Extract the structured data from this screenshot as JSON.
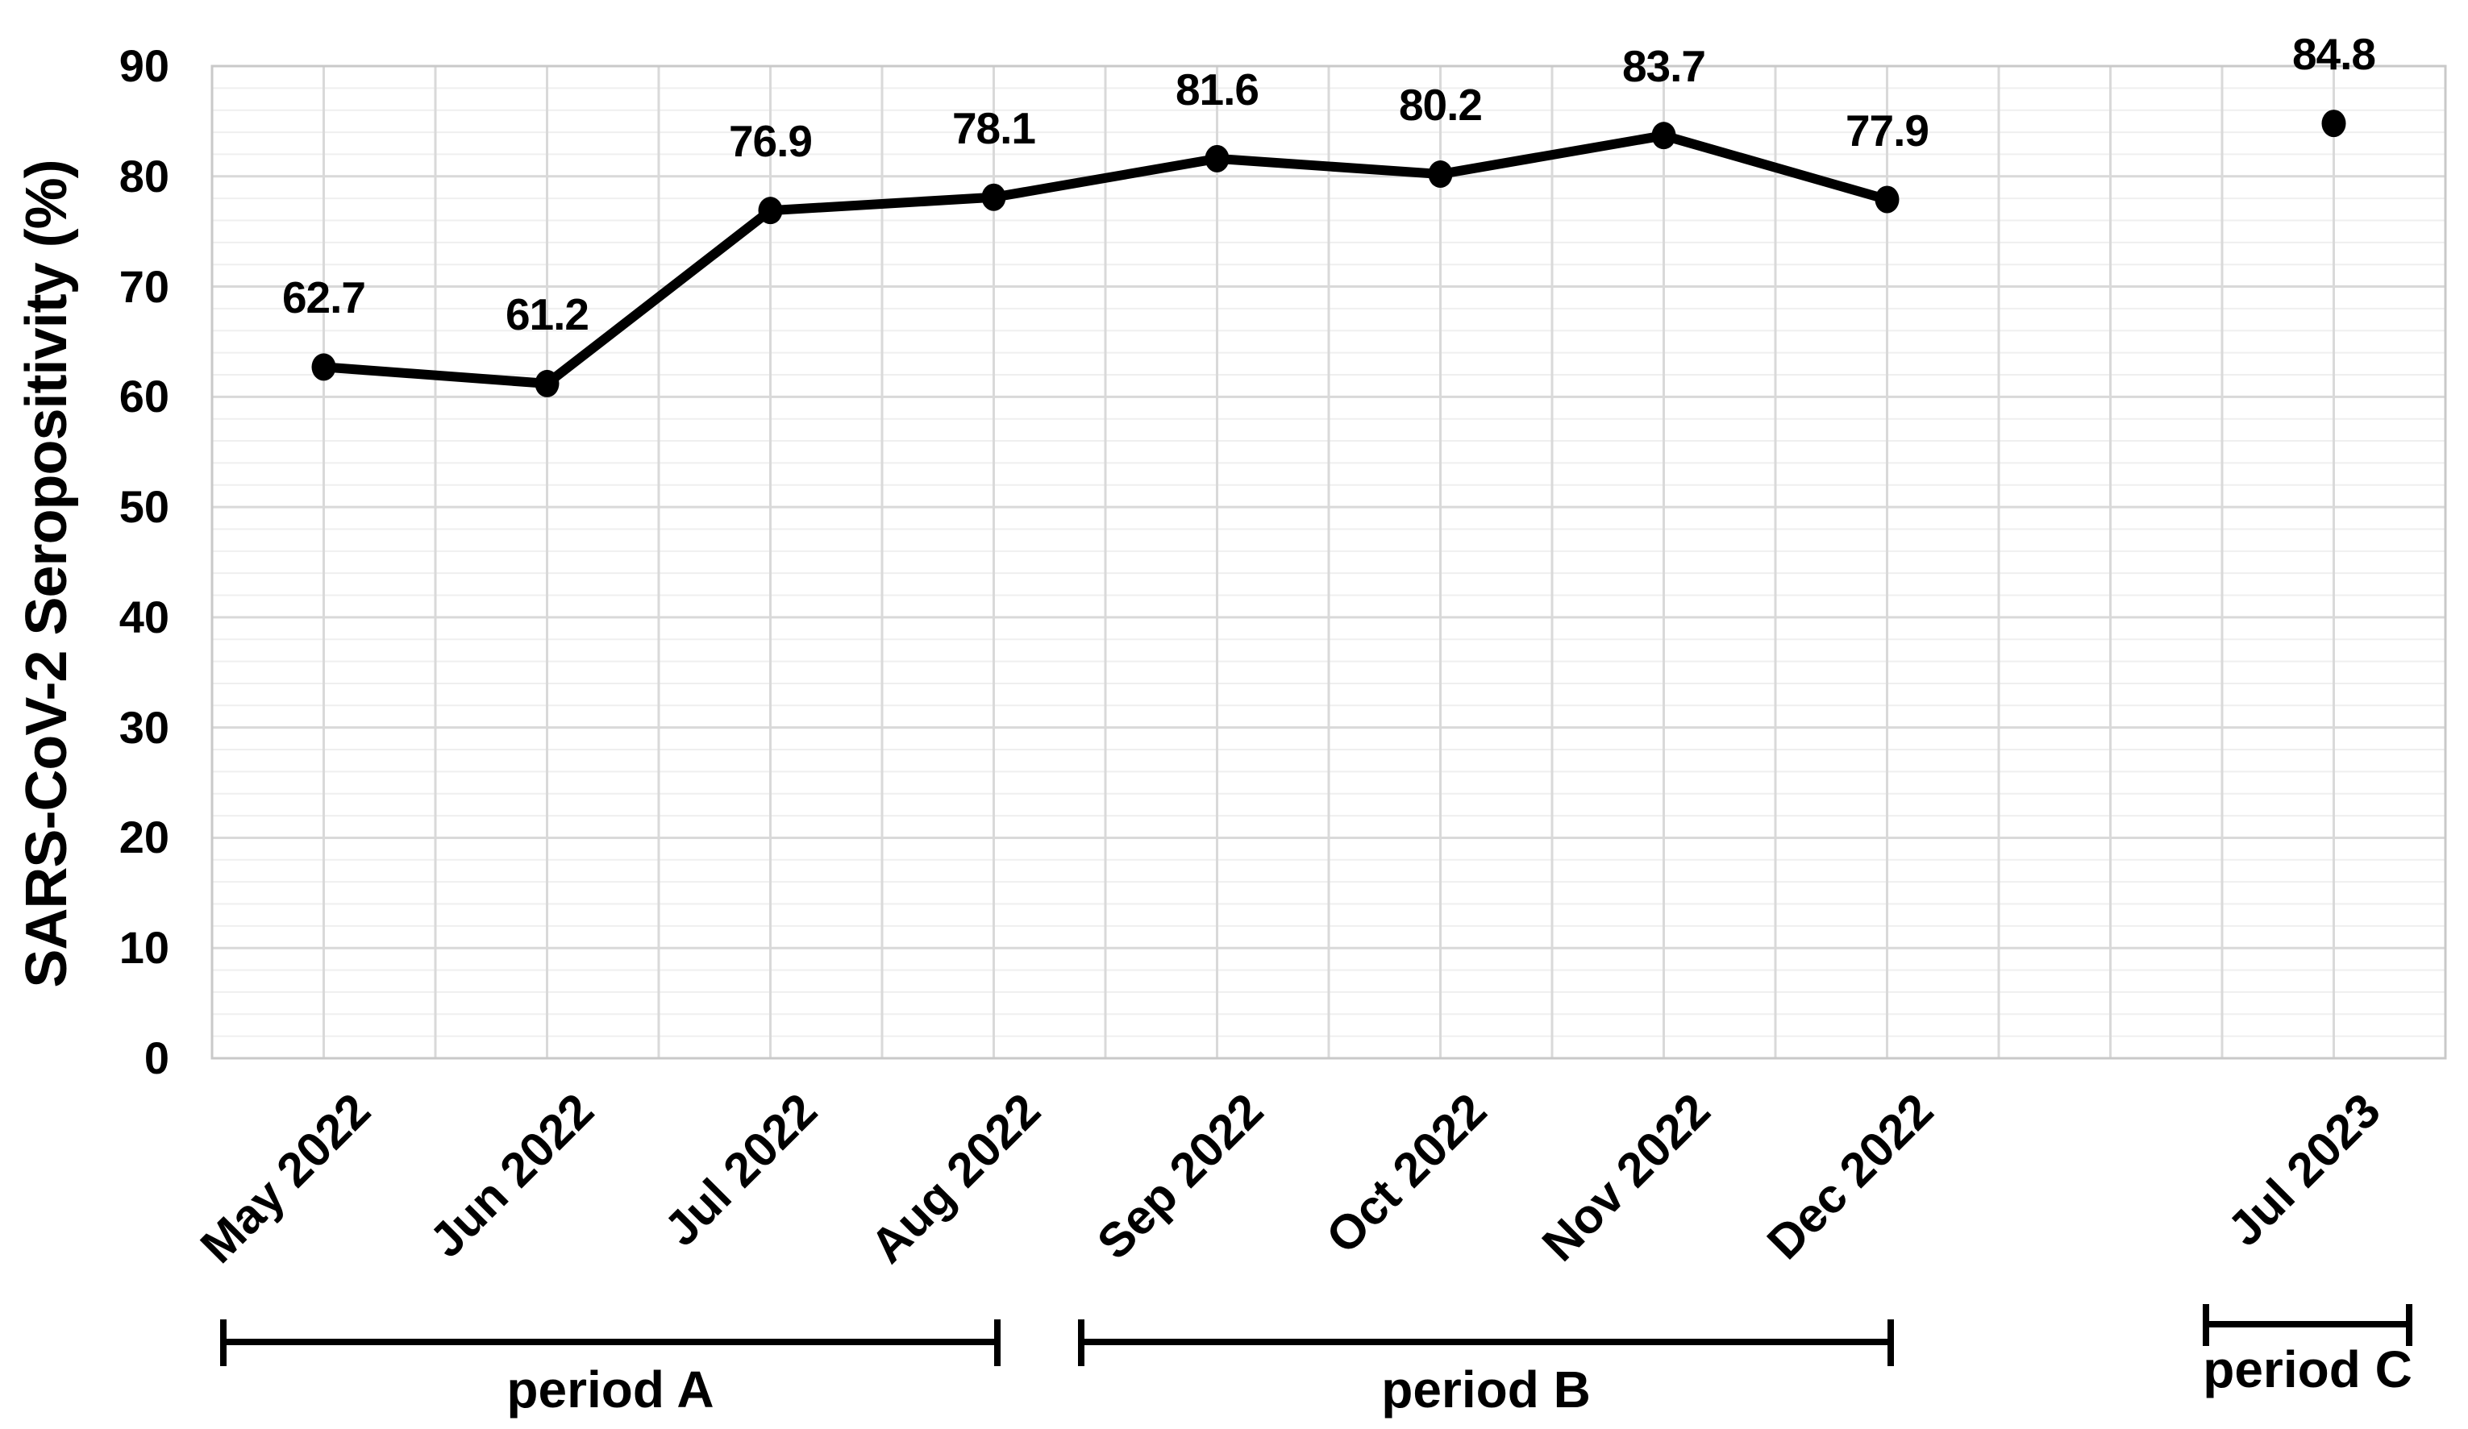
{
  "chart_data": {
    "type": "line",
    "title": "",
    "xlabel": "",
    "ylabel": "SARS-CoV-2 Seropositivity (%)",
    "ylim": [
      0,
      90
    ],
    "yticks": [
      0,
      10,
      20,
      30,
      40,
      50,
      60,
      70,
      80,
      90
    ],
    "minor_gridline_step": 2,
    "grid": "on",
    "legend": "none",
    "categories": [
      "May 2022",
      "Jun 2022",
      "Jul 2022",
      "Aug 2022",
      "Sep 2022",
      "Oct 2022",
      "Nov 2022",
      "Dec 2022",
      null,
      "Jul 2023"
    ],
    "series": [
      {
        "name": "SARS-CoV-2 seropositivity",
        "values": [
          62.7,
          61.2,
          76.9,
          78.1,
          81.6,
          80.2,
          83.7,
          77.9,
          null,
          84.8
        ],
        "color": "#000000",
        "marker": "circle",
        "data_labels": "above"
      }
    ],
    "periods": [
      {
        "label": "period A",
        "start_category": "May 2022",
        "end_category": "Aug 2022"
      },
      {
        "label": "period B",
        "start_category": "Sep 2022",
        "end_category": "Dec 2022"
      },
      {
        "label": "period C",
        "start_category": "Jul 2023",
        "end_category": "Jul 2023"
      }
    ],
    "colors": {
      "line": "#000000",
      "text": "#000000",
      "gridline_major": "#d9d9d9",
      "gridline_minor": "#efefef",
      "plot_border": "#c9c9c9",
      "background": "#ffffff"
    }
  }
}
